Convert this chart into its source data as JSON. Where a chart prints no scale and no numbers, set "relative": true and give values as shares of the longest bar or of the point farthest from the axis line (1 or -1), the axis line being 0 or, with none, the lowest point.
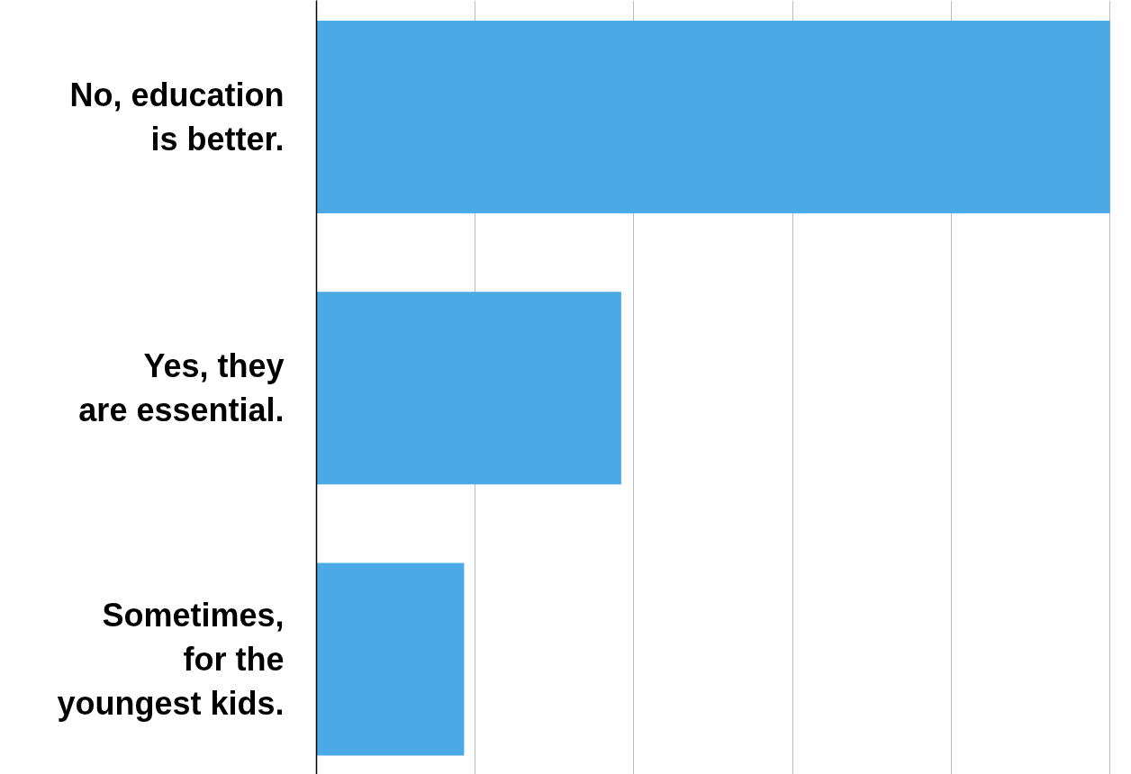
{
  "chart_data": {
    "type": "bar",
    "orientation": "horizontal",
    "relative": true,
    "categories": [
      "No, education\nis better.",
      "Yes, they\nare essential.",
      "Sometimes,\nfor the\nyoungest kids."
    ],
    "values": [
      1,
      0.384,
      0.186
    ],
    "color": "#4ba9e6",
    "grid": "x",
    "tick_labels": "y"
  }
}
